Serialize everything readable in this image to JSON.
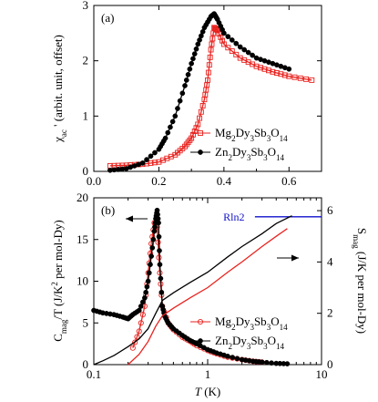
{
  "chart_data": [
    {
      "type": "scatter",
      "panel": "(a)",
      "xlabel": "",
      "ylabel": "χac ' (arbit. unit, offset)",
      "ylabel_main": "χ",
      "ylabel_sub": "ac",
      "ylabel_rest": " ' (arbit. unit, offset)",
      "xlim": [
        0.0,
        0.7
      ],
      "ylim": [
        0,
        3
      ],
      "x_ticks": [
        "0.0",
        "0.2",
        "0.4",
        "0.6"
      ],
      "x_tick_values": [
        0.0,
        0.2,
        0.4,
        0.6
      ],
      "y_ticks": [
        "0",
        "1",
        "2",
        "3"
      ],
      "y_tick_values": [
        0,
        1,
        2,
        3
      ],
      "legend": [
        {
          "parts": [
            [
              "Mg",
              false
            ],
            [
              "2",
              true
            ],
            [
              "Dy",
              false
            ],
            [
              "3",
              true
            ],
            [
              "Sb",
              false
            ],
            [
              "3",
              true
            ],
            [
              "O",
              false
            ],
            [
              "14",
              true
            ]
          ],
          "color": "#e8231f",
          "marker": "open-square"
        },
        {
          "parts": [
            [
              "Zn",
              false
            ],
            [
              "2",
              true
            ],
            [
              "Dy",
              false
            ],
            [
              "3",
              true
            ],
            [
              "Sb",
              false
            ],
            [
              "3",
              true
            ],
            [
              "O",
              false
            ],
            [
              "14",
              true
            ]
          ],
          "color": "#000000",
          "marker": "filled-circle"
        }
      ],
      "series": [
        {
          "name": "Mg2Dy3Sb3O14",
          "color": "#e8231f",
          "marker": "open-square",
          "x": [
            0.05,
            0.1,
            0.15,
            0.2,
            0.25,
            0.28,
            0.3,
            0.32,
            0.34,
            0.35,
            0.36,
            0.37,
            0.38,
            0.4,
            0.45,
            0.5,
            0.55,
            0.6,
            0.67
          ],
          "y": [
            0.1,
            0.11,
            0.13,
            0.17,
            0.3,
            0.45,
            0.6,
            0.85,
            1.3,
            1.65,
            2.2,
            2.6,
            2.55,
            2.3,
            2.05,
            1.9,
            1.8,
            1.72,
            1.65
          ]
        },
        {
          "name": "Zn2Dy3Sb3O14",
          "color": "#000000",
          "marker": "filled-circle",
          "x": [
            0.05,
            0.1,
            0.15,
            0.2,
            0.22,
            0.25,
            0.28,
            0.3,
            0.32,
            0.34,
            0.36,
            0.37,
            0.38,
            0.4,
            0.45,
            0.5,
            0.55,
            0.6
          ],
          "y": [
            0.02,
            0.05,
            0.15,
            0.4,
            0.6,
            1.0,
            1.55,
            1.95,
            2.3,
            2.6,
            2.8,
            2.85,
            2.75,
            2.5,
            2.25,
            2.05,
            1.95,
            1.85
          ]
        }
      ]
    },
    {
      "type": "scatter",
      "panel": "(b)",
      "xlabel_italic": "T",
      "xlabel_rest": " (K)",
      "x_scale": "log",
      "xlim": [
        0.1,
        10
      ],
      "x_ticks": [
        "0.1",
        "1",
        "10"
      ],
      "x_tick_values": [
        0.1,
        1,
        10
      ],
      "ylabel_left_parts": [
        [
          "C",
          false
        ],
        [
          "mag",
          true
        ],
        [
          "/",
          false
        ],
        [
          "T",
          false
        ],
        [
          " (J/K",
          false
        ],
        [
          "2",
          "sup"
        ],
        [
          " per mol-Dy)",
          false
        ]
      ],
      "ylim_left": [
        0,
        20
      ],
      "y_ticks_left": [
        "0",
        "5",
        "10",
        "15",
        "20"
      ],
      "y_tick_values_left": [
        0,
        5,
        10,
        15,
        20
      ],
      "ylabel_right_parts": [
        [
          "S",
          false
        ],
        [
          "mag",
          true
        ],
        [
          " (J/K per mol-Dy)",
          false
        ]
      ],
      "ylim_right": [
        0,
        6.5
      ],
      "y_ticks_right": [
        "0",
        "2",
        "4",
        "6"
      ],
      "y_tick_values_right": [
        0,
        2,
        4,
        6
      ],
      "rln2_label": "Rln2",
      "rln2_value": 5.76,
      "legend": [
        {
          "parts": [
            [
              "Mg",
              false
            ],
            [
              "2",
              true
            ],
            [
              "Dy",
              false
            ],
            [
              "3",
              true
            ],
            [
              "Sb",
              false
            ],
            [
              "3",
              true
            ],
            [
              "O",
              false
            ],
            [
              "14",
              true
            ]
          ],
          "color": "#e8231f",
          "marker": "open-circle"
        },
        {
          "parts": [
            [
              "Zn",
              false
            ],
            [
              "2",
              true
            ],
            [
              "Dy",
              false
            ],
            [
              "3",
              true
            ],
            [
              "Sb",
              false
            ],
            [
              "3",
              true
            ],
            [
              "O",
              false
            ],
            [
              "14",
              true
            ]
          ],
          "color": "#000000",
          "marker": "filled-circle"
        }
      ],
      "series": [
        {
          "name": "Mg2Dy3Sb3O14 Cmag/T",
          "axis": "left",
          "color": "#e8231f",
          "marker": "open-circle",
          "x": [
            0.22,
            0.25,
            0.28,
            0.3,
            0.32,
            0.34,
            0.36,
            0.38,
            0.4,
            0.45,
            0.5,
            0.6,
            0.7,
            0.8,
            1.0,
            1.2,
            1.5,
            2.0,
            2.5,
            3.0
          ],
          "y": [
            2.0,
            4.0,
            7.0,
            11.0,
            14.5,
            17.0,
            16.5,
            11.0,
            7.0,
            5.0,
            4.2,
            3.3,
            2.8,
            2.3,
            1.7,
            1.3,
            0.9,
            0.6,
            0.4,
            0.3
          ]
        },
        {
          "name": "Zn2Dy3Sb3O14 Cmag/T",
          "axis": "left",
          "color": "#000000",
          "marker": "filled-circle",
          "x": [
            0.1,
            0.12,
            0.15,
            0.18,
            0.2,
            0.22,
            0.25,
            0.28,
            0.3,
            0.32,
            0.34,
            0.35,
            0.36,
            0.37,
            0.38,
            0.4,
            0.42,
            0.45,
            0.5,
            0.6,
            0.7,
            0.8,
            1.0,
            1.2,
            1.5,
            2.0,
            2.5,
            3.0,
            4.0,
            5.0
          ],
          "y": [
            6.5,
            6.2,
            6.0,
            5.7,
            5.5,
            6.0,
            6.5,
            8.0,
            10.0,
            13.0,
            16.0,
            17.5,
            18.5,
            17.0,
            12.0,
            7.0,
            5.8,
            5.0,
            4.3,
            3.5,
            2.9,
            2.5,
            1.8,
            1.4,
            1.0,
            0.6,
            0.4,
            0.3,
            0.15,
            0.1
          ]
        },
        {
          "name": "Mg2Dy3Sb3O14 Smag",
          "axis": "right",
          "color": "#e8231f",
          "marker": "line",
          "x": [
            0.2,
            0.25,
            0.3,
            0.35,
            0.4,
            0.5,
            0.7,
            1.0,
            1.5,
            2.0,
            3.0,
            4.0,
            5.0
          ],
          "y": [
            0.0,
            0.4,
            0.9,
            1.5,
            1.9,
            2.2,
            2.6,
            3.0,
            3.6,
            4.0,
            4.6,
            5.0,
            5.3
          ]
        },
        {
          "name": "Zn2Dy3Sb3O14 Smag",
          "axis": "right",
          "color": "#000000",
          "marker": "line",
          "x": [
            0.1,
            0.12,
            0.15,
            0.2,
            0.25,
            0.3,
            0.35,
            0.4,
            0.5,
            0.7,
            1.0,
            1.5,
            2.0,
            3.0,
            4.0,
            5.5
          ],
          "y": [
            0.0,
            0.15,
            0.35,
            0.7,
            1.0,
            1.4,
            2.0,
            2.5,
            2.8,
            3.2,
            3.6,
            4.2,
            4.6,
            5.1,
            5.5,
            5.8
          ]
        }
      ]
    }
  ]
}
